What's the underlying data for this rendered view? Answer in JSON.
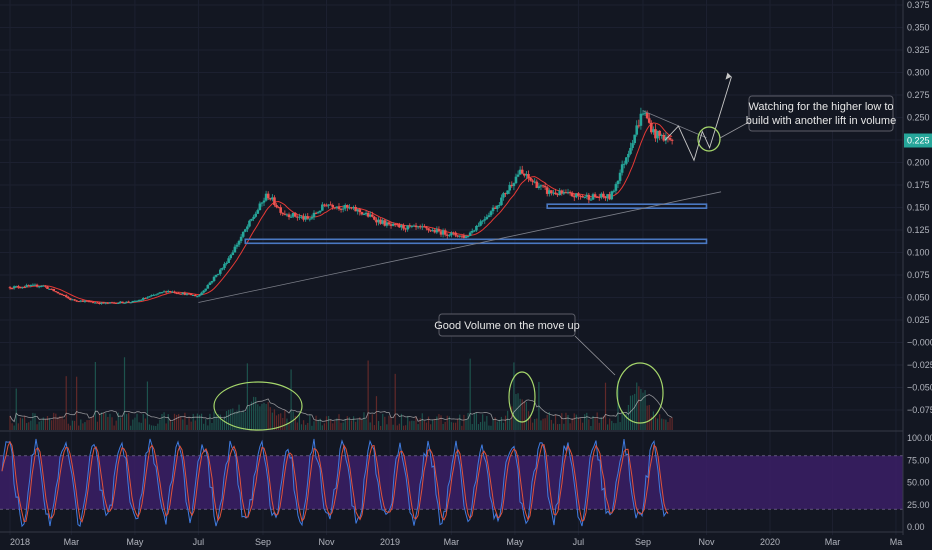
{
  "theme": {
    "background": "#131722",
    "up_color": "#26a69a",
    "down_color": "#ef5350",
    "ma_color": "#e53935",
    "level_color": "#4a78c2",
    "annotation_circle": "#a5d66b",
    "stoch_k_color": "#3f7be0",
    "stoch_d_color": "#e0523b",
    "stoch_band_color": "#3b1f66",
    "volume_ma_color": "#c8c8c8"
  },
  "chart_data": {
    "type": "candlestick",
    "x_tick_labels": [
      "2018",
      "Mar",
      "May",
      "Jul",
      "Sep",
      "Nov",
      "2019",
      "Mar",
      "May",
      "Jul",
      "Sep",
      "Nov",
      "2020",
      "Mar",
      "Ma"
    ],
    "price_axis_labels": [
      "0.375",
      "0.350",
      "0.325",
      "0.300",
      "0.275",
      "0.250",
      "0.225",
      "0.200",
      "0.175",
      "0.150",
      "0.125",
      "0.100",
      "0.075",
      "0.050",
      "0.025",
      "−0.000",
      "−0.025",
      "−0.050",
      "−0.075"
    ],
    "current_price_label": "0.225",
    "price_key_points": [
      {
        "date": "2018-01-01",
        "price": 0.062
      },
      {
        "date": "2018-02-01",
        "price": 0.064
      },
      {
        "date": "2018-03-01",
        "price": 0.048
      },
      {
        "date": "2018-04-01",
        "price": 0.044
      },
      {
        "date": "2018-05-01",
        "price": 0.046
      },
      {
        "date": "2018-06-01",
        "price": 0.058
      },
      {
        "date": "2018-07-01",
        "price": 0.052
      },
      {
        "date": "2018-07-25",
        "price": 0.085
      },
      {
        "date": "2018-08-20",
        "price": 0.135
      },
      {
        "date": "2018-09-05",
        "price": 0.165
      },
      {
        "date": "2018-09-20",
        "price": 0.145
      },
      {
        "date": "2018-10-15",
        "price": 0.137
      },
      {
        "date": "2018-11-01",
        "price": 0.155
      },
      {
        "date": "2018-12-01",
        "price": 0.147
      },
      {
        "date": "2019-01-01",
        "price": 0.13
      },
      {
        "date": "2019-02-01",
        "price": 0.127
      },
      {
        "date": "2019-03-15",
        "price": 0.118
      },
      {
        "date": "2019-04-15",
        "price": 0.155
      },
      {
        "date": "2019-05-05",
        "price": 0.19
      },
      {
        "date": "2019-06-01",
        "price": 0.168
      },
      {
        "date": "2019-07-01",
        "price": 0.163
      },
      {
        "date": "2019-08-01",
        "price": 0.162
      },
      {
        "date": "2019-08-20",
        "price": 0.22
      },
      {
        "date": "2019-09-01",
        "price": 0.258
      },
      {
        "date": "2019-09-12",
        "price": 0.232
      },
      {
        "date": "2019-09-30",
        "price": 0.225
      }
    ],
    "horizontal_levels": [
      {
        "price": 0.113,
        "from": "2018-08-15",
        "to": "2019-11-01"
      },
      {
        "price": 0.152,
        "from": "2019-06-01",
        "to": "2019-11-01"
      }
    ],
    "trendlines": [
      {
        "from": {
          "date": "2018-07-01",
          "price": 0.045
        },
        "to": {
          "date": "2019-11-15",
          "price": 0.168
        }
      },
      {
        "from": {
          "date": "2019-09-01",
          "price": 0.258
        },
        "to": {
          "date": "2019-11-01",
          "price": 0.228
        }
      }
    ],
    "projection_path": [
      {
        "date": "2019-09-22",
        "price": 0.225
      },
      {
        "date": "2019-10-05",
        "price": 0.241
      },
      {
        "date": "2019-10-20",
        "price": 0.203
      },
      {
        "date": "2019-10-28",
        "price": 0.235
      },
      {
        "date": "2019-11-04",
        "price": 0.217
      },
      {
        "date": "2019-11-25",
        "price": 0.296
      }
    ],
    "stochastic_axis_labels": [
      "100.00",
      "75.00",
      "50.00",
      "25.00",
      "0.00"
    ],
    "stochastic_bands": [
      20,
      80
    ]
  },
  "annotations": {
    "higher_low_note": [
      "Watching for the higher low to",
      "build with another lift in volume"
    ],
    "volume_note": "Good Volume on the move up"
  }
}
